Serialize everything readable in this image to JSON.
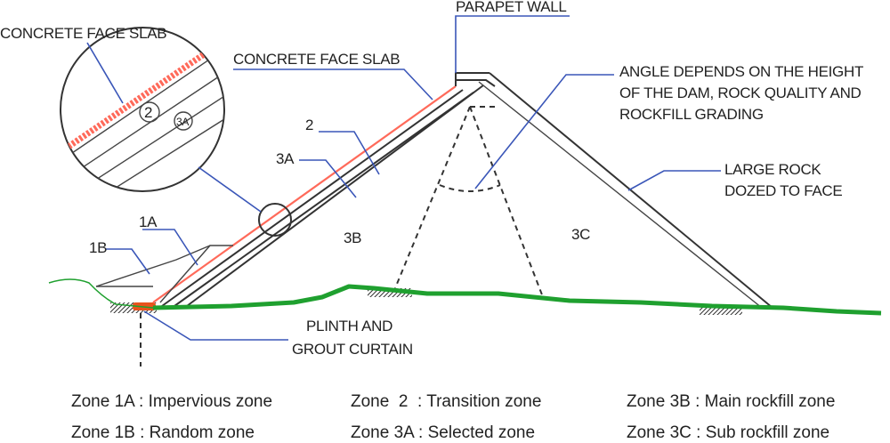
{
  "labels": {
    "concrete_slab_detail": "CONCRETE FACE SLAB",
    "concrete_slab_main": "CONCRETE FACE SLAB",
    "parapet_wall": "PARAPET WALL",
    "angle_note": [
      "ANGLE DEPENDS ON THE HEIGHT",
      "OF THE DAM, ROCK QUALITY AND",
      "ROCKFILL GRADING"
    ],
    "large_rock": [
      "LARGE ROCK",
      "DOZED TO FACE"
    ],
    "plinth": [
      "PLINTH AND",
      "GROUT CURTAIN"
    ],
    "zone_2": "2",
    "zone_3a": "3A",
    "zone_1a": "1A",
    "zone_1b": "1B",
    "zone_3b": "3B",
    "zone_3c": "3C",
    "detail_2": "2",
    "detail_3a": "3A"
  },
  "legend": {
    "z1a": "Zone 1A : Impervious zone",
    "z1b": "Zone 1B : Random zone",
    "z2": "Zone  2  : Transition zone",
    "z3a": "Zone 3A : Selected zone",
    "z3b": "Zone 3B : Main rockfill zone",
    "z3c": "Zone 3C : Sub rockfill zone"
  },
  "colors": {
    "ground": "#1fa02f",
    "slab": "#ff6a5a",
    "plinth": "#e8531c",
    "leader": "#3a56b8"
  }
}
